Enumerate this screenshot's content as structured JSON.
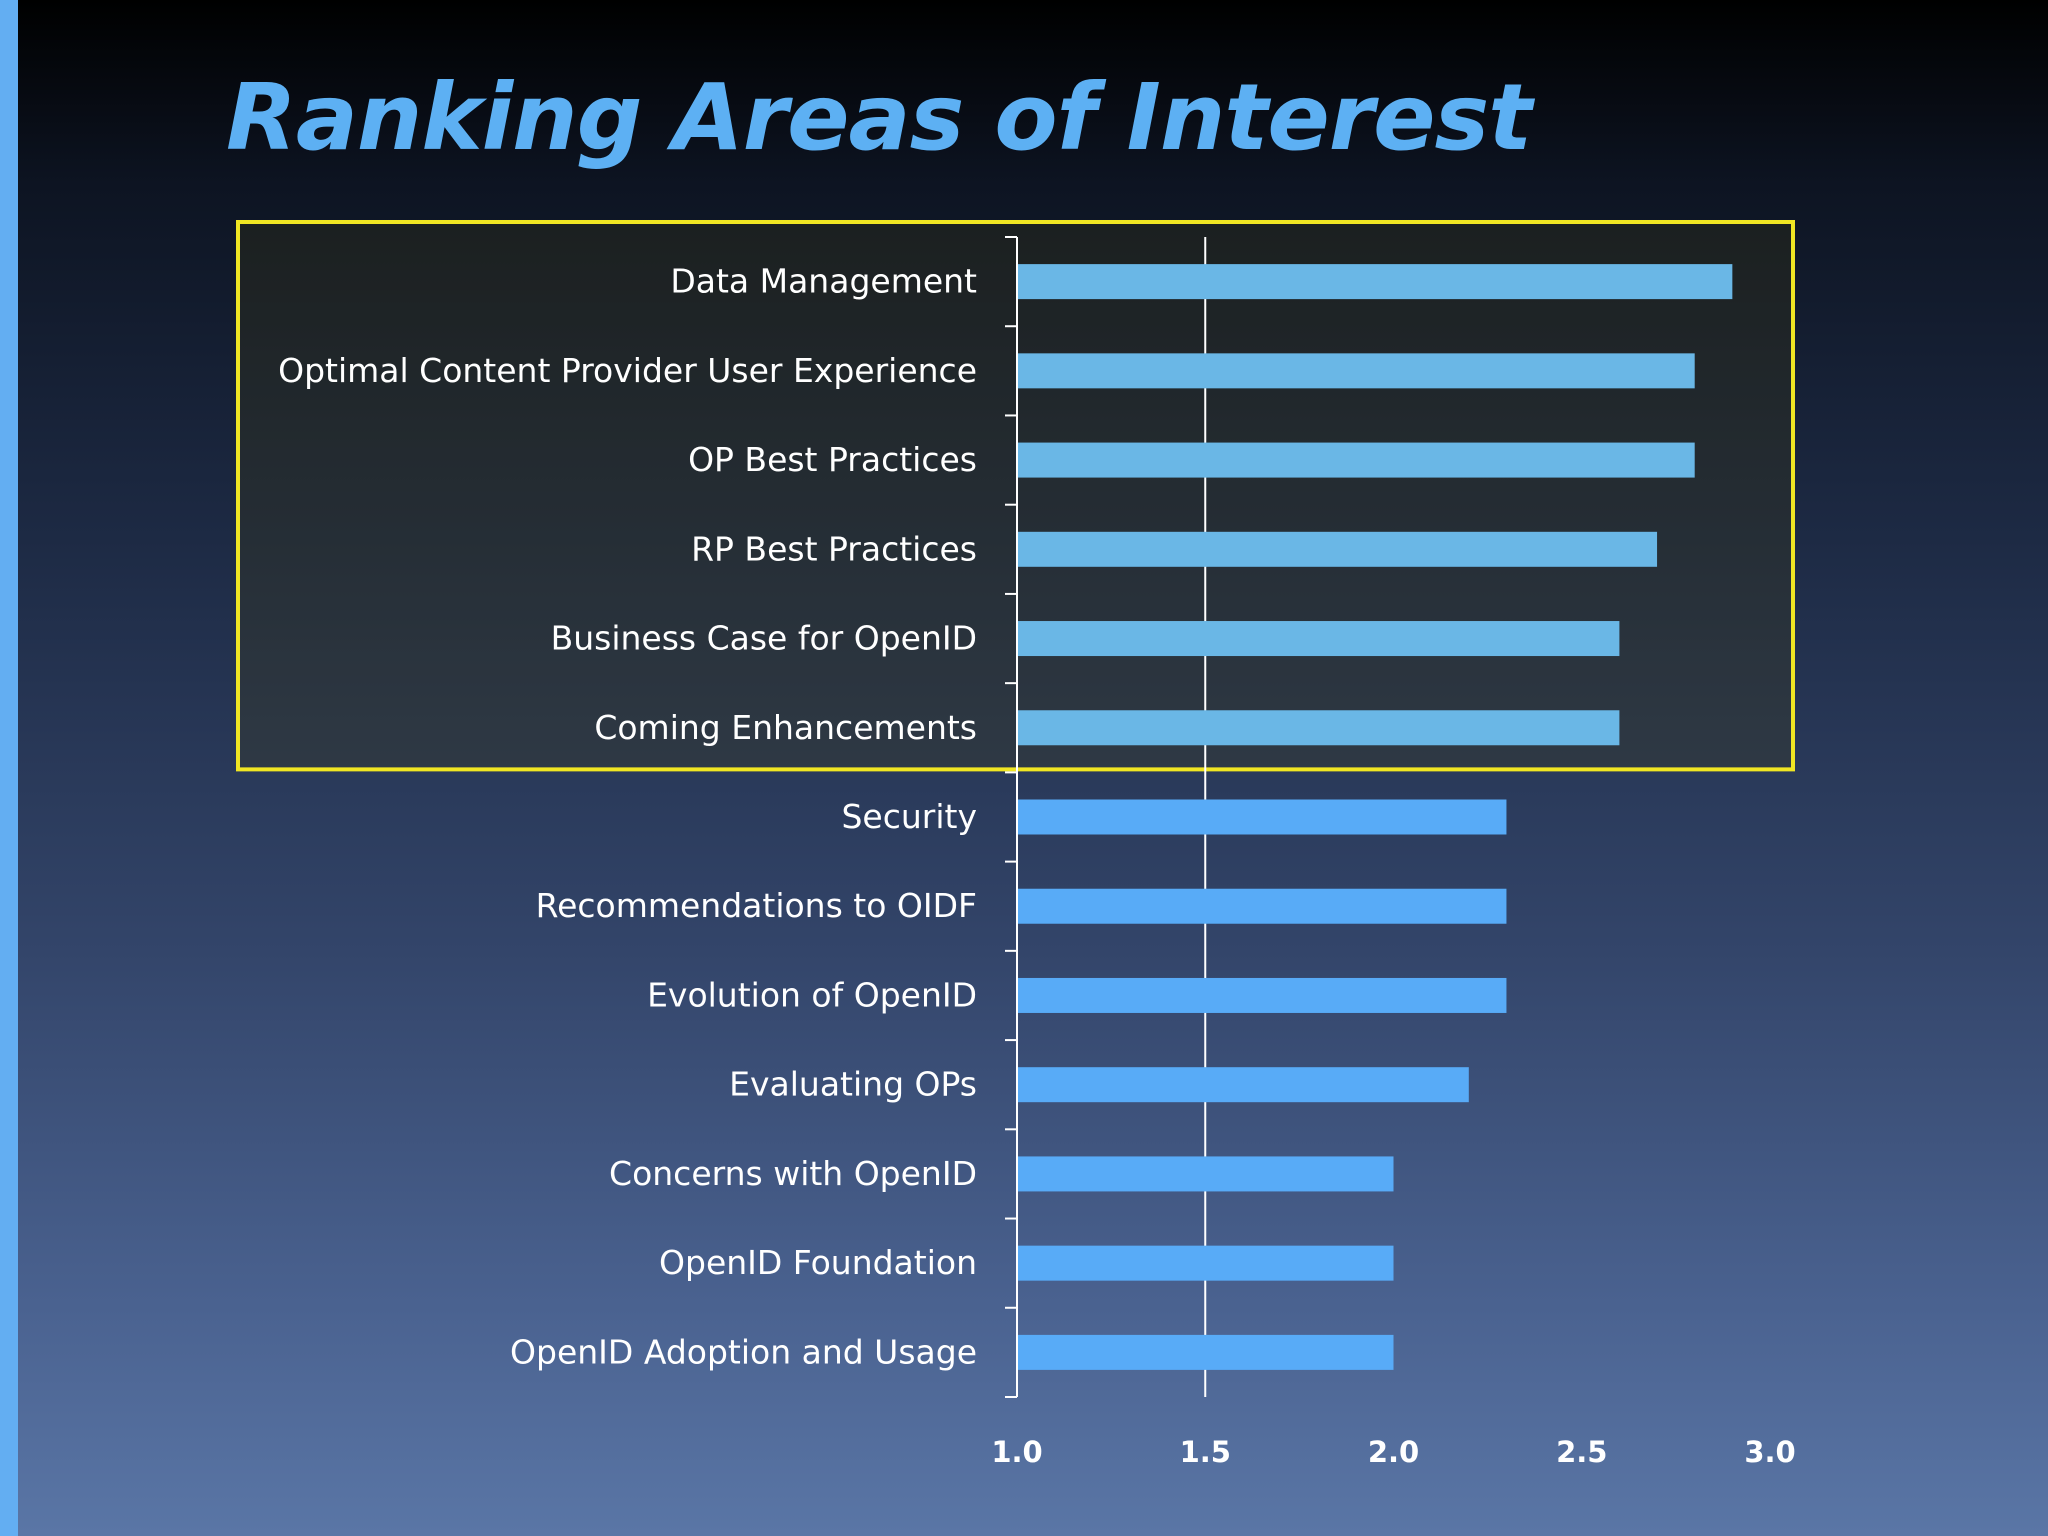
{
  "slide": {
    "title": "Ranking Areas of Interest"
  },
  "colors": {
    "stripe": "#63aef2",
    "title": "#5db0f3",
    "bar_highlighted": "#6ab7e6",
    "bar_normal": "#58abf7",
    "highlight_border": "#f0e623",
    "axis": "#ffffff"
  },
  "chart_data": {
    "type": "bar",
    "orientation": "horizontal",
    "title": "",
    "xlabel": "",
    "ylabel": "",
    "categories": [
      "Data Management",
      "Optimal Content Provider User Experience",
      "OP Best Practices",
      "RP Best Practices",
      "Business Case for OpenID",
      "Coming Enhancements",
      "Security",
      "Recommendations to OIDF",
      "Evolution of OpenID",
      "Evaluating OPs",
      "Concerns with OpenID",
      "OpenID Foundation",
      "OpenID Adoption and Usage"
    ],
    "values": [
      2.9,
      2.8,
      2.8,
      2.7,
      2.6,
      2.6,
      2.3,
      2.3,
      2.3,
      2.2,
      2.0,
      2.0,
      2.0
    ],
    "highlighted_count": 6,
    "xlim": [
      1.0,
      3.0
    ],
    "xticks": [
      "1.0",
      "1.5",
      "2.0",
      "2.5",
      "3.0"
    ],
    "xtick_values": [
      1.0,
      1.5,
      2.0,
      2.5,
      3.0
    ],
    "gridline_at": 1.5,
    "legend": "none"
  }
}
